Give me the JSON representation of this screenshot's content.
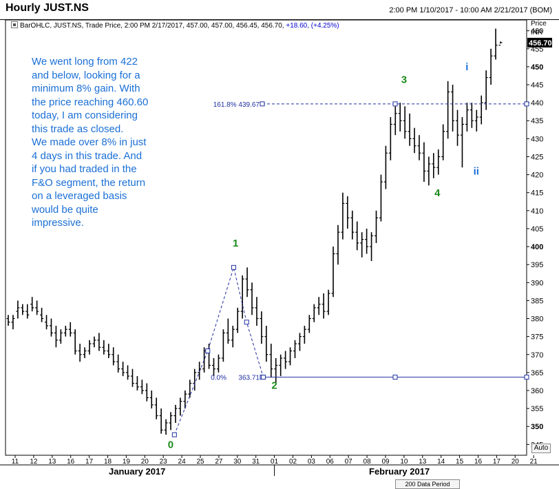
{
  "header": {
    "title": "Hourly JUST.NS",
    "range": "2:00 PM 1/10/2017 - 10:00 AM 2/21/2017 (BOM)"
  },
  "legend": {
    "text": "BarOHLC, JUST.NS, Trade Price, 2:00 PM 2/17/2017, 457.00, 457.00, 456.45, 456.70,",
    "change": "+18.60, (+4.25%)"
  },
  "axis_header": {
    "line1": "Price",
    "line2": "INR"
  },
  "note": "We went long from 422\nand below, looking for a\nminimum 8% gain. With\nthe price reaching 460.60\ntoday, I am considering\nthis trade as closed.\nWe made over 8% in just\n4 days in this trade. And\nif you had traded in the\nF&O segment, the return\non a leveraged basis\nwould be quite\nimpressive.",
  "controls": {
    "auto": "Auto",
    "period": "200 Data Period"
  },
  "months": [
    "January 2017",
    "February 2017"
  ],
  "colors": {
    "bars": "#000000",
    "fib_lines": "#1f2fa0",
    "wave_labels_major": "#1a8a1a",
    "wave_labels_minor": "#1a6fd6",
    "note_text": "#1a6fd6",
    "last_price_bg": "#000000"
  },
  "chart_data": {
    "type": "bar",
    "subtype": "OHLC",
    "symbol": "JUST.NS",
    "ylabel": "Price INR",
    "ylim": [
      342,
      463
    ],
    "yticks": [
      345,
      350,
      355,
      360,
      365,
      370,
      375,
      380,
      385,
      390,
      395,
      400,
      405,
      410,
      415,
      420,
      425,
      430,
      435,
      440,
      445,
      450,
      455,
      460
    ],
    "last_price": "456.70",
    "xticks": [
      "11",
      "12",
      "13",
      "16",
      "17",
      "18",
      "19",
      "20",
      "23",
      "24",
      "25",
      "27",
      "30",
      "31",
      "01",
      "02",
      "03",
      "06",
      "07",
      "08",
      "09",
      "10",
      "13",
      "14",
      "15",
      "16",
      "17",
      "20",
      "21"
    ],
    "fib_levels": [
      {
        "label": "161.8% 439.67",
        "value": 439.67
      },
      {
        "label": "0.0%",
        "value": 363.71
      },
      {
        "label": "363.71",
        "value": 363.71
      }
    ],
    "wave_labels": [
      {
        "label": "0",
        "x_index": 8.4,
        "price": 344,
        "group": "major"
      },
      {
        "label": "1",
        "x_index": 11.9,
        "price": 400,
        "group": "major"
      },
      {
        "label": "2",
        "x_index": 14.0,
        "price": 360.5,
        "group": "major"
      },
      {
        "label": "3",
        "x_index": 21.0,
        "price": 445.5,
        "group": "major"
      },
      {
        "label": "4",
        "x_index": 22.8,
        "price": 414,
        "group": "major"
      },
      {
        "label": "i",
        "x_index": 24.4,
        "price": 449,
        "group": "minor"
      },
      {
        "label": "ii",
        "x_index": 24.9,
        "price": 420,
        "group": "minor"
      }
    ],
    "wave_path": [
      {
        "x_index": 8.6,
        "price": 347.7
      },
      {
        "x_index": 10.4,
        "price": 371
      },
      {
        "x_index": 11.8,
        "price": 394.2
      },
      {
        "x_index": 12.5,
        "price": 379
      },
      {
        "x_index": 13.4,
        "price": 363.7
      }
    ],
    "series": [
      {
        "bars": [
          [
            380,
            381,
            378,
            379
          ],
          [
            379,
            381,
            377,
            380
          ],
          [
            382,
            385,
            380,
            383
          ],
          [
            383,
            384,
            381,
            382
          ],
          [
            382,
            384,
            380,
            381
          ],
          [
            384,
            386,
            382,
            383
          ],
          [
            383,
            385,
            381,
            382
          ],
          [
            381,
            383,
            379,
            380
          ],
          [
            379,
            381,
            377,
            378
          ],
          [
            378,
            380,
            375,
            376
          ],
          [
            376,
            378,
            372,
            374
          ],
          [
            374,
            377,
            373,
            376
          ],
          [
            376,
            378,
            375,
            377
          ],
          [
            377,
            379,
            375,
            376
          ],
          [
            376,
            377,
            370,
            371
          ],
          [
            371,
            373,
            368,
            370
          ],
          [
            370,
            372,
            369,
            371
          ],
          [
            371,
            374,
            370,
            373
          ],
          [
            373,
            375,
            372,
            374
          ],
          [
            374,
            376,
            371,
            372
          ],
          [
            372,
            374,
            370,
            371
          ],
          [
            371,
            373,
            369,
            370
          ],
          [
            370,
            372,
            367,
            368
          ],
          [
            368,
            370,
            365,
            366
          ],
          [
            366,
            368,
            364,
            365
          ],
          [
            365,
            367,
            363,
            364
          ],
          [
            364,
            366,
            361,
            362
          ],
          [
            362,
            364,
            360,
            361
          ],
          [
            361,
            363,
            359,
            360
          ],
          [
            360,
            362,
            357,
            358
          ],
          [
            358,
            360,
            355,
            356
          ],
          [
            356,
            358,
            352,
            353
          ],
          [
            353,
            355,
            348,
            349
          ],
          [
            349,
            352,
            347.7,
            351
          ],
          [
            351,
            354,
            349,
            353
          ],
          [
            353,
            356,
            351,
            355
          ],
          [
            355,
            358,
            353,
            357
          ],
          [
            357,
            360,
            355,
            359
          ],
          [
            359,
            363,
            358,
            362
          ],
          [
            362,
            366,
            360,
            365
          ],
          [
            365,
            368,
            363,
            366
          ],
          [
            366,
            372,
            365,
            371
          ],
          [
            371,
            373,
            366,
            367
          ],
          [
            367,
            369,
            364,
            366
          ],
          [
            366,
            370,
            365,
            369
          ],
          [
            369,
            377,
            368,
            376
          ],
          [
            376,
            380,
            373,
            374
          ],
          [
            374,
            378,
            372,
            377
          ],
          [
            377,
            383,
            376,
            382
          ],
          [
            382,
            392,
            380,
            391
          ],
          [
            391,
            394.2,
            386,
            388
          ],
          [
            388,
            390,
            381,
            383
          ],
          [
            383,
            386,
            378,
            380
          ],
          [
            380,
            382,
            373,
            375
          ],
          [
            375,
            378,
            368,
            370
          ],
          [
            370,
            373,
            363.7,
            366
          ],
          [
            366,
            369,
            362,
            367
          ],
          [
            367,
            370,
            364,
            369
          ],
          [
            369,
            371,
            366,
            368
          ],
          [
            368,
            372,
            367,
            371
          ],
          [
            371,
            374,
            369,
            373
          ],
          [
            373,
            376,
            371,
            375
          ],
          [
            375,
            378,
            373,
            377
          ],
          [
            377,
            381,
            376,
            380
          ],
          [
            380,
            384,
            379,
            383
          ],
          [
            383,
            386,
            381,
            384
          ],
          [
            384,
            387,
            380,
            382
          ],
          [
            382,
            388,
            381,
            387
          ],
          [
            387,
            400,
            386,
            398
          ],
          [
            398,
            406,
            395,
            404
          ],
          [
            404,
            415,
            402,
            412
          ],
          [
            412,
            414,
            405,
            408
          ],
          [
            408,
            410,
            402,
            404
          ],
          [
            404,
            407,
            399,
            401
          ],
          [
            401,
            404,
            397,
            402
          ],
          [
            402,
            405,
            398,
            400
          ],
          [
            400,
            404,
            396,
            403
          ],
          [
            403,
            410,
            401,
            408
          ],
          [
            408,
            420,
            407,
            418
          ],
          [
            418,
            428,
            416,
            426
          ],
          [
            426,
            436,
            424,
            434
          ],
          [
            434,
            439,
            431,
            437
          ],
          [
            437,
            440,
            432,
            435
          ],
          [
            435,
            439,
            430,
            432
          ],
          [
            432,
            437,
            428,
            430
          ],
          [
            430,
            433,
            426,
            428
          ],
          [
            428,
            431,
            424,
            426
          ],
          [
            426,
            429,
            418,
            421
          ],
          [
            421,
            425,
            417,
            423
          ],
          [
            423,
            426,
            419,
            422
          ],
          [
            422,
            427,
            420,
            425
          ],
          [
            425,
            434,
            424,
            432
          ],
          [
            432,
            446,
            430,
            443
          ],
          [
            443,
            445,
            432,
            435
          ],
          [
            435,
            438,
            428,
            431
          ],
          [
            431,
            436,
            422,
            434
          ],
          [
            434,
            440,
            432,
            438
          ],
          [
            438,
            440,
            433,
            435
          ],
          [
            435,
            438,
            432,
            436
          ],
          [
            436,
            442,
            434,
            440
          ],
          [
            440,
            449,
            438,
            447
          ],
          [
            447,
            455,
            445,
            453
          ],
          [
            453,
            460.6,
            452,
            456
          ],
          [
            456,
            457,
            456.45,
            456.7
          ]
        ]
      }
    ]
  }
}
